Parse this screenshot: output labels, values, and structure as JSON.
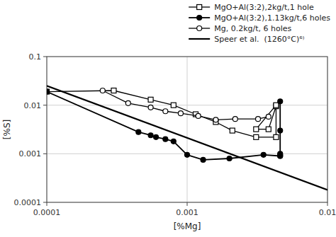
{
  "chart_data": {
    "type": "line",
    "xlabel": "[%Mg]",
    "ylabel": "[%S]",
    "log": true,
    "grid": true,
    "legend": "upper-right",
    "xlim": [
      0.0001,
      0.01
    ],
    "ylim": [
      0.0001,
      0.1
    ],
    "xticks": [
      0.0001,
      0.001,
      0.01
    ],
    "yticks": [
      0.0001,
      0.001,
      0.01,
      0.1
    ],
    "series": [
      {
        "name": "MgO+Al(3:2),2kg/t,1 hole",
        "color": "black",
        "marker": "square-open",
        "line_style": "solid",
        "x": [
          0.0001,
          0.0003,
          0.00055,
          0.0008,
          0.00115,
          0.0016,
          0.0021,
          0.0031,
          0.0043,
          0.0043,
          0.0038,
          0.0031,
          0.0043
        ],
        "values": [
          0.019,
          0.02,
          0.013,
          0.01,
          0.0065,
          0.0045,
          0.003,
          0.0022,
          0.0022,
          0.0095,
          0.0032,
          0.0032,
          0.01
        ]
      },
      {
        "name": "MgO+Al(3:2),1.13kg/t,6 holes",
        "color": "black",
        "marker": "circle",
        "line_style": "solid",
        "x": [
          0.0001,
          0.00045,
          0.00055,
          0.0006,
          0.0007,
          0.0008,
          0.001,
          0.0013,
          0.002,
          0.0035,
          0.0046,
          0.0046,
          0.0046,
          0.0046,
          0.0046,
          0.0046
        ],
        "values": [
          0.019,
          0.0028,
          0.0024,
          0.0022,
          0.002,
          0.0018,
          0.00095,
          0.00075,
          0.0008,
          0.00095,
          0.0009,
          0.00095,
          0.0009,
          0.001,
          0.003,
          0.012
        ]
      },
      {
        "name": "Mg, 0.2kg/t, 6 holes",
        "color": "black",
        "marker": "circle-open",
        "line_style": "solid",
        "x": [
          0.00025,
          0.00038,
          0.00055,
          0.0007,
          0.0009,
          0.0012,
          0.0016,
          0.0022,
          0.0032,
          0.0038
        ],
        "values": [
          0.02,
          0.011,
          0.009,
          0.0075,
          0.0068,
          0.006,
          0.005,
          0.0052,
          0.0052,
          0.0058
        ]
      },
      {
        "name": "Speer et al.  (1260°C)⁶⁾",
        "color": "black",
        "marker": "none",
        "line_style": "solid",
        "x": [
          0.0001,
          0.01
        ],
        "values": [
          0.025,
          0.00018
        ]
      }
    ]
  }
}
